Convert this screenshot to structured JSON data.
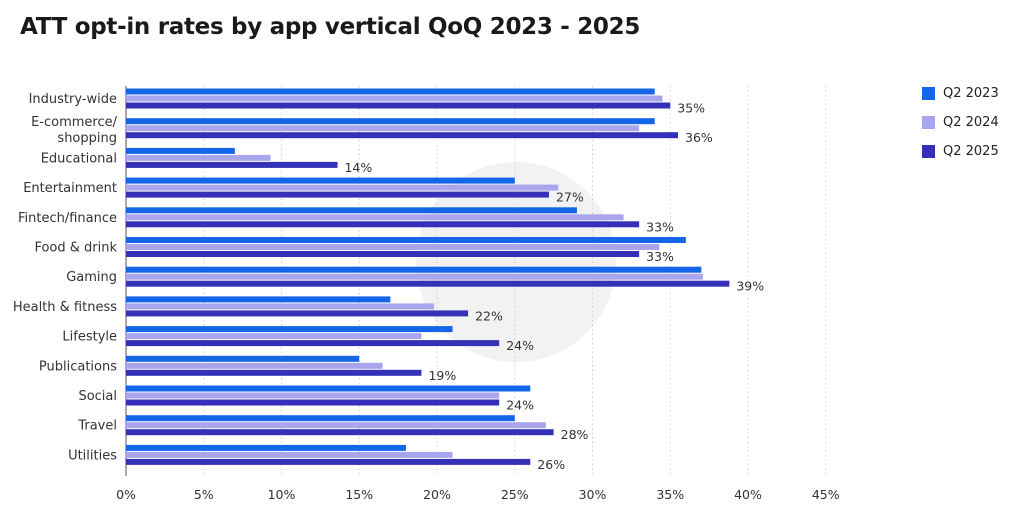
{
  "title": "ATT opt-in rates by app vertical QoQ 2023 - 2025",
  "colors": {
    "q2_2023": "#1565e8",
    "q2_2024": "#a9a6ee",
    "q2_2025": "#3530b8"
  },
  "legend": [
    {
      "label": "Q2 2023",
      "color": "#1565e8"
    },
    {
      "label": "Q2 2024",
      "color": "#a9a6ee"
    },
    {
      "label": "Q2 2025",
      "color": "#3530b8"
    }
  ],
  "chart_data": {
    "type": "bar",
    "orientation": "horizontal",
    "title": "ATT opt-in rates by app vertical QoQ 2023 - 2025",
    "categories": [
      "Industry-wide",
      "E-commerce/ shopping",
      "Educational",
      "Entertainment",
      "Fintech/finance",
      "Food & drink",
      "Gaming",
      "Health & fitness",
      "Lifestyle",
      "Publications",
      "Social",
      "Travel",
      "Utilities"
    ],
    "series": [
      {
        "name": "Q2 2023",
        "values": [
          34,
          34,
          7,
          25,
          29,
          36,
          37,
          17,
          21,
          15,
          26,
          25,
          18
        ]
      },
      {
        "name": "Q2 2024",
        "values": [
          34.5,
          33,
          9.3,
          27.8,
          32,
          34.3,
          37.1,
          19.8,
          19,
          16.5,
          24,
          27,
          21
        ]
      },
      {
        "name": "Q2 2025",
        "values": [
          35,
          35.5,
          13.6,
          27.2,
          33,
          33,
          38.8,
          22,
          24,
          19,
          24,
          27.5,
          26
        ]
      }
    ],
    "data_labels": [
      "35%",
      "36%",
      "14%",
      "27%",
      "33%",
      "33%",
      "39%",
      "22%",
      "24%",
      "19%",
      "24%",
      "28%",
      "26%"
    ],
    "x_ticks": [
      "0%",
      "5%",
      "10%",
      "15%",
      "20%",
      "25%",
      "30%",
      "35%",
      "40%",
      "45%"
    ],
    "xlim": [
      0,
      45
    ],
    "grid": true,
    "legend_position": "top-right"
  }
}
